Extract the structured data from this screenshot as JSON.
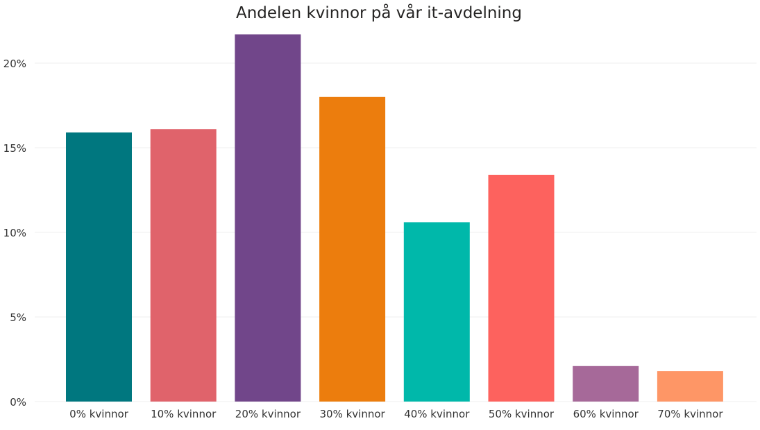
{
  "chart_data": {
    "type": "bar",
    "title": "Andelen kvinnor på vår it-avdelning",
    "xlabel": "",
    "ylabel": "",
    "categories": [
      "0% kvinnor",
      "10% kvinnor",
      "20% kvinnor",
      "30% kvinnor",
      "40% kvinnor",
      "50% kvinnor",
      "60% kvinnor",
      "70% kvinnor"
    ],
    "values": [
      15.9,
      16.1,
      21.7,
      18.0,
      10.6,
      13.4,
      2.1,
      1.8
    ],
    "colors": [
      "#00777F",
      "#E0636B",
      "#71468A",
      "#EC7D0D",
      "#00B8AA",
      "#FD625E",
      "#A66999",
      "#FE9666"
    ],
    "ylim": [
      0,
      22
    ],
    "yticks": [
      0,
      5,
      10,
      15,
      20
    ],
    "ytick_labels": [
      "0%",
      "5%",
      "10%",
      "15%",
      "20%"
    ],
    "grid": true
  }
}
